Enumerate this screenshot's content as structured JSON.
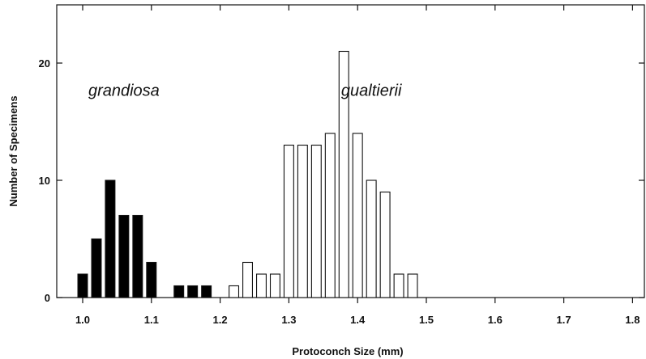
{
  "chart_data": {
    "type": "bar",
    "title": "",
    "xlabel": "Protoconch Size (mm)",
    "ylabel": "Number of Specimens",
    "xlim": [
      0.96,
      1.82
    ],
    "ylim": [
      0,
      25
    ],
    "bin_width": 0.02,
    "x_ticks": [
      {
        "value": 1.0,
        "label": "1.0"
      },
      {
        "value": 1.1,
        "label": "1.1"
      },
      {
        "value": 1.2,
        "label": "1.2"
      },
      {
        "value": 1.3,
        "label": "1.3"
      },
      {
        "value": 1.4,
        "label": "1.4"
      },
      {
        "value": 1.5,
        "label": "1.5"
      },
      {
        "value": 1.6,
        "label": "1.6"
      },
      {
        "value": 1.7,
        "label": "1.7"
      },
      {
        "value": 1.8,
        "label": "1.8"
      }
    ],
    "y_ticks": [
      {
        "value": 0,
        "label": "0"
      },
      {
        "value": 10,
        "label": "10"
      },
      {
        "value": 20,
        "label": "20"
      }
    ],
    "grid": false,
    "series": [
      {
        "name": "grandiosa",
        "fill": "#000000",
        "x": [
          1.0,
          1.02,
          1.04,
          1.06,
          1.08,
          1.1,
          1.14,
          1.16,
          1.18
        ],
        "values": [
          2,
          5,
          10,
          7,
          7,
          3,
          1,
          1,
          1
        ]
      },
      {
        "name": "gualtierii",
        "fill": "#ffffff",
        "x": [
          1.22,
          1.24,
          1.26,
          1.28,
          1.3,
          1.32,
          1.34,
          1.36,
          1.38,
          1.4,
          1.42,
          1.44,
          1.46,
          1.48
        ],
        "values": [
          1,
          3,
          2,
          2,
          13,
          13,
          13,
          14,
          21,
          14,
          10,
          9,
          2,
          2
        ]
      }
    ],
    "annotations": [
      {
        "text": "grandiosa",
        "x": 1.06,
        "y": 17.2
      },
      {
        "text": "gualtierii",
        "x": 1.42,
        "y": 17.2
      }
    ]
  }
}
